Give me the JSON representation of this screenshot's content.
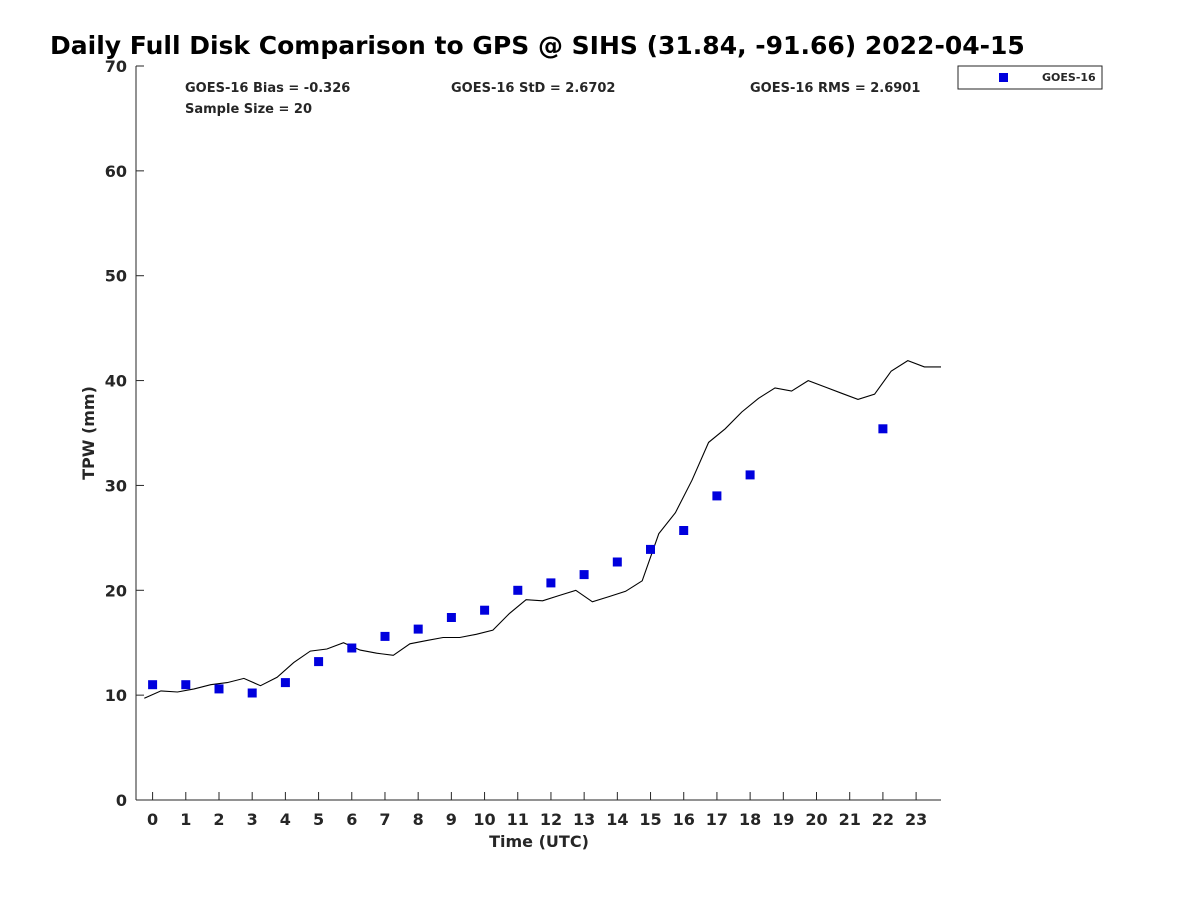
{
  "chart_data": {
    "type": "scatter",
    "title": "Daily Full Disk Comparison to GPS @ SIHS (31.84, -91.66) 2022-04-15",
    "xlabel": "Time (UTC)",
    "ylabel": "TPW (mm)",
    "xlim": [
      -0.5,
      23.75
    ],
    "ylim": [
      0,
      70
    ],
    "xticks": [
      "0",
      "1",
      "2",
      "3",
      "4",
      "5",
      "6",
      "7",
      "8",
      "9",
      "10",
      "11",
      "12",
      "13",
      "14",
      "15",
      "16",
      "17",
      "18",
      "19",
      "20",
      "21",
      "22",
      "23"
    ],
    "yticks": [
      "0",
      "10",
      "20",
      "30",
      "40",
      "50",
      "60",
      "70"
    ],
    "grid": false,
    "legend_position": "top-right",
    "stats": {
      "bias": "GOES-16 Bias = -0.326",
      "std": "GOES-16 StD = 2.6702",
      "rms": "GOES-16 RMS = 2.6901",
      "sample": "Sample Size = 20"
    },
    "series": [
      {
        "name": "GOES-16",
        "kind": "scatter",
        "color": "#0000dd",
        "x": [
          0,
          1,
          2,
          3,
          4,
          5,
          6,
          7,
          8,
          9,
          10,
          11,
          12,
          13,
          14,
          15,
          16,
          17,
          18,
          22
        ],
        "y": [
          11.0,
          11.0,
          10.6,
          10.2,
          11.2,
          13.2,
          14.5,
          15.6,
          16.3,
          17.4,
          18.1,
          20.0,
          20.7,
          21.5,
          22.7,
          23.9,
          25.7,
          29.0,
          31.0,
          35.4
        ]
      },
      {
        "kind": "line",
        "color": "#000000",
        "x": [
          -0.25,
          0.25,
          0.75,
          1.25,
          1.75,
          2.25,
          2.75,
          3.25,
          3.75,
          4.25,
          4.75,
          5.25,
          5.75,
          6.25,
          6.75,
          7.25,
          7.75,
          8.25,
          8.75,
          9.25,
          9.75,
          10.25,
          10.75,
          11.25,
          11.75,
          12.25,
          12.75,
          13.25,
          13.75,
          14.25,
          14.75,
          15.25,
          15.75,
          16.25,
          16.75,
          17.25,
          17.75,
          18.25,
          18.75,
          19.25,
          19.75,
          20.25,
          20.75,
          21.25,
          21.75,
          22.25,
          22.75,
          23.25,
          23.75
        ],
        "y": [
          9.7,
          10.4,
          10.3,
          10.6,
          11.0,
          11.2,
          11.6,
          10.9,
          11.7,
          13.1,
          14.2,
          14.4,
          15.0,
          14.3,
          14.0,
          13.8,
          14.9,
          15.2,
          15.5,
          15.5,
          15.8,
          16.2,
          17.8,
          19.1,
          19.0,
          19.5,
          20.0,
          18.9,
          19.4,
          19.9,
          20.9,
          25.4,
          27.4,
          30.5,
          34.1,
          35.4,
          37.0,
          38.3,
          39.3,
          39.0,
          40.0,
          39.4,
          38.8,
          38.2,
          38.7,
          40.9,
          41.9,
          41.3,
          41.3
        ]
      }
    ]
  }
}
